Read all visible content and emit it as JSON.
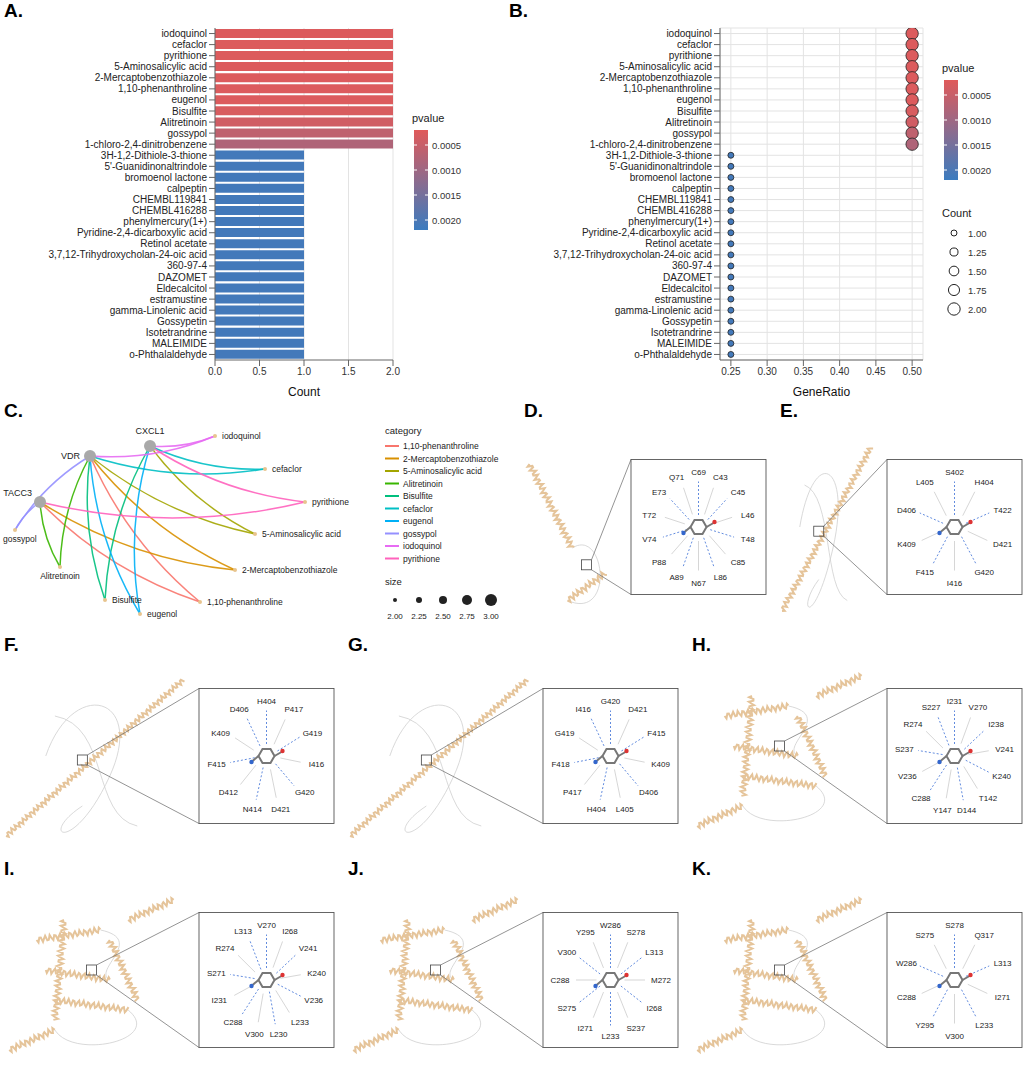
{
  "chart_data": [
    {
      "panel_label": "A.",
      "type": "bar",
      "orientation": "horizontal",
      "categories": [
        "iodoquinol",
        "cefaclor",
        "pyrithione",
        "5-Aminosalicylic acid",
        "2-Mercaptobenzothiazole",
        "1,10-phenanthroline",
        "eugenol",
        "Bisulfite",
        "Alitretinoin",
        "gossypol",
        "1-chloro-2,4-dinitrobenzene",
        "3H-1,2-Dithiole-3-thione",
        "5'-Guanidinonaltrindole",
        "bromoenol lactone",
        "calpeptin",
        "CHEMBL119841",
        "CHEMBL416288",
        "phenylmercury(1+)",
        "Pyridine-2,4-dicarboxylic acid",
        "Retinol acetate",
        "3,7,12-Trihydroxycholan-24-oic acid",
        "360-97-4",
        "DAZOMET",
        "Eldecalcitol",
        "estramustine",
        "gamma-Linolenic acid",
        "Gossypetin",
        "Isotetrandrine",
        "MALEIMIDE",
        "o-Phthalaldehyde"
      ],
      "values": [
        2,
        2,
        2,
        2,
        2,
        2,
        2,
        2,
        2,
        2,
        2,
        1,
        1,
        1,
        1,
        1,
        1,
        1,
        1,
        1,
        1,
        1,
        1,
        1,
        1,
        1,
        1,
        1,
        1,
        1
      ],
      "pvalues": [
        0.00025,
        0.00025,
        0.00025,
        0.00025,
        0.00025,
        0.00025,
        0.00025,
        0.0003,
        0.0004,
        0.0006,
        0.0008,
        0.0021,
        0.0021,
        0.0021,
        0.0021,
        0.0021,
        0.0021,
        0.0021,
        0.0021,
        0.0021,
        0.0021,
        0.0021,
        0.0021,
        0.0021,
        0.0021,
        0.0021,
        0.0021,
        0.0021,
        0.0021,
        0.0021
      ],
      "x_label": "Count",
      "xlim": [
        0,
        2
      ],
      "xticks": [
        {
          "value": 0,
          "label": "0.0"
        },
        0.5,
        {
          "value": 1,
          "label": "1.0"
        },
        1.5,
        {
          "value": 2,
          "label": "2.0"
        }
      ],
      "grid": true,
      "pvalue_colorbar": {
        "title": "pvalue",
        "range": [
          0.0002,
          0.0022
        ],
        "ticks": [
          0.0005,
          {
            "value": 0.001,
            "label": "0.0010"
          },
          0.0015,
          {
            "value": 0.002,
            "label": "0.0020"
          }
        ],
        "low_color": "#e05a5a",
        "high_color": "#3b7bbf"
      }
    },
    {
      "panel_label": "B.",
      "type": "scatter",
      "categories": [
        "iodoquinol",
        "cefaclor",
        "pyrithione",
        "5-Aminosalicylic acid",
        "2-Mercaptobenzothiazole",
        "1,10-phenanthroline",
        "eugenol",
        "Bisulfite",
        "Alitretinoin",
        "gossypol",
        "1-chloro-2,4-dinitrobenzene",
        "3H-1,2-Dithiole-3-thione",
        "5'-Guanidinonaltrindole",
        "bromoenol lactone",
        "calpeptin",
        "CHEMBL119841",
        "CHEMBL416288",
        "phenylmercury(1+)",
        "Pyridine-2,4-dicarboxylic acid",
        "Retinol acetate",
        "3,7,12-Trihydroxycholan-24-oic acid",
        "360-97-4",
        "DAZOMET",
        "Eldecalcitol",
        "estramustine",
        "gamma-Linolenic acid",
        "Gossypetin",
        "Isotetrandrine",
        "MALEIMIDE",
        "o-Phthalaldehyde"
      ],
      "x": [
        0.5,
        0.5,
        0.5,
        0.5,
        0.5,
        0.5,
        0.5,
        0.5,
        0.5,
        0.5,
        0.5,
        0.25,
        0.25,
        0.25,
        0.25,
        0.25,
        0.25,
        0.25,
        0.25,
        0.25,
        0.25,
        0.25,
        0.25,
        0.25,
        0.25,
        0.25,
        0.25,
        0.25,
        0.25,
        0.25
      ],
      "sizes": [
        2,
        2,
        2,
        2,
        2,
        2,
        2,
        2,
        2,
        2,
        2,
        1,
        1,
        1,
        1,
        1,
        1,
        1,
        1,
        1,
        1,
        1,
        1,
        1,
        1,
        1,
        1,
        1,
        1,
        1
      ],
      "pvalues": [
        0.00025,
        0.00025,
        0.00025,
        0.00025,
        0.00025,
        0.00025,
        0.00025,
        0.0003,
        0.0004,
        0.0006,
        0.0008,
        0.0021,
        0.0021,
        0.0021,
        0.0021,
        0.0021,
        0.0021,
        0.0021,
        0.0021,
        0.0021,
        0.0021,
        0.0021,
        0.0021,
        0.0021,
        0.0021,
        0.0021,
        0.0021,
        0.0021,
        0.0021,
        0.0021
      ],
      "x_label": "GeneRatio",
      "xlim": [
        0.235,
        0.515
      ],
      "xticks": [
        0.25,
        {
          "value": 0.3,
          "label": "0.30"
        },
        0.35,
        {
          "value": 0.4,
          "label": "0.40"
        },
        0.45,
        {
          "value": 0.5,
          "label": "0.50"
        }
      ],
      "grid": true,
      "pvalue_colorbar": {
        "title": "pvalue",
        "range": [
          0.0002,
          0.0022
        ],
        "ticks": [
          0.0005,
          {
            "value": 0.001,
            "label": "0.0010"
          },
          0.0015,
          {
            "value": 0.002,
            "label": "0.0020"
          }
        ],
        "low_color": "#e05a5a",
        "high_color": "#3b7bbf"
      },
      "size_legend": {
        "title": "Count",
        "ticks": [
          {
            "value": 1,
            "label": "1.00"
          },
          1.25,
          {
            "value": 1.5,
            "label": "1.50"
          },
          1.75,
          {
            "value": 2,
            "label": "2.00"
          }
        ]
      }
    }
  ],
  "network": {
    "panel_label": "C.",
    "genes": [
      {
        "name": "CXCL1",
        "size": 3
      },
      {
        "name": "VDR",
        "size": 3
      },
      {
        "name": "TACC3",
        "size": 3
      }
    ],
    "drugs": [
      {
        "name": "1,10-phenanthroline",
        "color": "#F8766D",
        "size": 2,
        "targets": [
          "TACC3",
          "VDR"
        ]
      },
      {
        "name": "2-Mercaptobenzothiazole",
        "color": "#D89000",
        "size": 2,
        "targets": [
          "VDR",
          "TACC3"
        ]
      },
      {
        "name": "5-Aminosalicylic acid",
        "color": "#A3A500",
        "size": 2,
        "targets": [
          "CXCL1",
          "VDR"
        ]
      },
      {
        "name": "Alitretinoin",
        "color": "#39B600",
        "size": 2,
        "targets": [
          "VDR",
          "TACC3"
        ]
      },
      {
        "name": "Bisulfite",
        "color": "#00BF7D",
        "size": 2,
        "targets": [
          "CXCL1",
          "VDR"
        ]
      },
      {
        "name": "cefaclor",
        "color": "#00BFC4",
        "size": 2,
        "targets": [
          "CXCL1",
          "VDR"
        ]
      },
      {
        "name": "eugenol",
        "color": "#00B0F6",
        "size": 2,
        "targets": [
          "CXCL1",
          "VDR"
        ]
      },
      {
        "name": "gossypol",
        "color": "#9590FF",
        "size": 2,
        "targets": [
          "TACC3",
          "VDR"
        ]
      },
      {
        "name": "iodoquinol",
        "color": "#E76BF3",
        "size": 2,
        "targets": [
          "VDR",
          "CXCL1"
        ]
      },
      {
        "name": "pyrithione",
        "color": "#FF62BC",
        "size": 2,
        "targets": [
          "TACC3",
          "CXCL1"
        ]
      }
    ],
    "category_legend_title": "category",
    "size_legend": {
      "title": "size",
      "ticks": [
        {
          "value": 2,
          "label": "2.00"
        },
        2.25,
        {
          "value": 2.5,
          "label": "2.50"
        },
        2.75,
        {
          "value": 3,
          "label": "3.00"
        }
      ]
    }
  },
  "docking": [
    {
      "panel_label": "D.",
      "residues": [
        "C69",
        "C43",
        "C45",
        "L46",
        "T48",
        "C85",
        "L86",
        "N67",
        "A89",
        "P88",
        "V74",
        "T72",
        "E73",
        "Q71"
      ]
    },
    {
      "panel_label": "E.",
      "residues": [
        "S402",
        "H404",
        "T422",
        "D421",
        "G420",
        "I416",
        "F415",
        "K409",
        "D406",
        "L405"
      ]
    },
    {
      "panel_label": "F.",
      "residues": [
        "H404",
        "P417",
        "G419",
        "I416",
        "G420",
        "D421",
        "N414",
        "D412",
        "F415",
        "K409",
        "D406"
      ]
    },
    {
      "panel_label": "G.",
      "residues": [
        "G420",
        "D421",
        "F415",
        "K409",
        "D406",
        "L405",
        "H404",
        "P417",
        "F418",
        "G419",
        "I416"
      ]
    },
    {
      "panel_label": "H.",
      "residues": [
        "I231",
        "V270",
        "I238",
        "V241",
        "K240",
        "T142",
        "D144",
        "Y147",
        "C288",
        "V236",
        "S237",
        "R274",
        "S227"
      ]
    },
    {
      "panel_label": "I.",
      "residues": [
        "V270",
        "I268",
        "V241",
        "K240",
        "V236",
        "L233",
        "L230",
        "V300",
        "C288",
        "I231",
        "S271",
        "R274",
        "L313"
      ]
    },
    {
      "panel_label": "J.",
      "residues": [
        "W286",
        "S278",
        "L313",
        "M272",
        "I268",
        "S237",
        "L233",
        "I271",
        "S275",
        "C288",
        "V300",
        "Y295"
      ]
    },
    {
      "panel_label": "K.",
      "residues": [
        "S278",
        "Q317",
        "L313",
        "I271",
        "L233",
        "V300",
        "Y295",
        "C288",
        "W286",
        "S275"
      ]
    }
  ]
}
